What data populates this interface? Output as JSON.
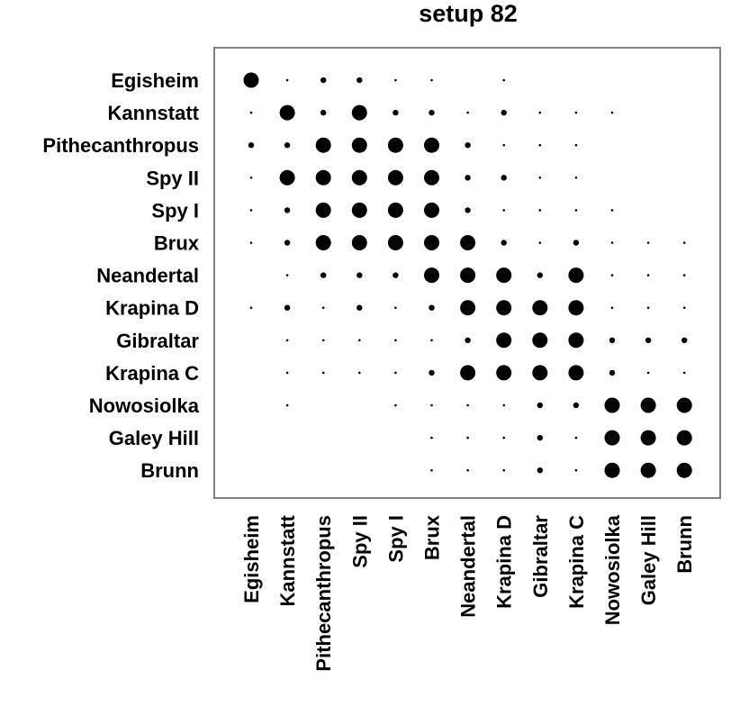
{
  "chart_data": {
    "type": "dot-matrix",
    "title": "setup 82",
    "rows": [
      "Egisheim",
      "Kannstatt",
      "Pithecanthropus",
      "Spy II",
      "Spy I",
      "Brux",
      "Neandertal",
      "Krapina D",
      "Gibraltar",
      "Krapina C",
      "Nowosiolka",
      "Galey Hill",
      "Brunn"
    ],
    "columns": [
      "Egisheim",
      "Kannstatt",
      "Pithecanthropus",
      "Spy II",
      "Spy I",
      "Brux",
      "Neandertal",
      "Krapina D",
      "Gibraltar",
      "Krapina C",
      "Nowosiolka",
      "Galey Hill",
      "Brunn"
    ],
    "values": [
      [
        5,
        1,
        2,
        2,
        1,
        1,
        0,
        1,
        0,
        0,
        0,
        0,
        0
      ],
      [
        1,
        5,
        2,
        5,
        2,
        2,
        1,
        2,
        1,
        1,
        1,
        0,
        0
      ],
      [
        2,
        2,
        5,
        5,
        5,
        5,
        2,
        1,
        1,
        1,
        0,
        0,
        0
      ],
      [
        1,
        5,
        5,
        5,
        5,
        5,
        2,
        2,
        1,
        1,
        0,
        0,
        0
      ],
      [
        1,
        2,
        5,
        5,
        5,
        5,
        2,
        1,
        1,
        1,
        1,
        0,
        0
      ],
      [
        1,
        2,
        5,
        5,
        5,
        5,
        5,
        2,
        1,
        2,
        1,
        1,
        1
      ],
      [
        0,
        1,
        2,
        2,
        2,
        5,
        5,
        5,
        2,
        5,
        1,
        1,
        1
      ],
      [
        1,
        2,
        1,
        2,
        1,
        2,
        5,
        5,
        5,
        5,
        1,
        1,
        1
      ],
      [
        0,
        1,
        1,
        1,
        1,
        1,
        2,
        5,
        5,
        5,
        2,
        2,
        2
      ],
      [
        0,
        1,
        1,
        1,
        1,
        2,
        5,
        5,
        5,
        5,
        2,
        1,
        1
      ],
      [
        0,
        1,
        0,
        0,
        1,
        1,
        1,
        1,
        2,
        2,
        5,
        5,
        5
      ],
      [
        0,
        0,
        0,
        0,
        0,
        1,
        1,
        1,
        2,
        1,
        5,
        5,
        5
      ],
      [
        0,
        0,
        0,
        0,
        0,
        1,
        1,
        1,
        2,
        1,
        5,
        5,
        5
      ]
    ],
    "grid": false,
    "legend": "none",
    "dot_color": "#000000",
    "frame_color": "#808080"
  }
}
